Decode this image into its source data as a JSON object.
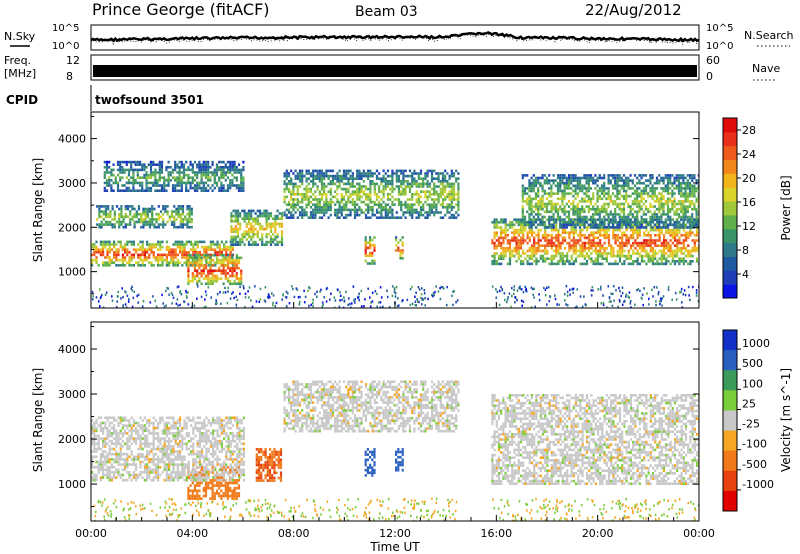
{
  "header": {
    "station": "Prince George (fitACF)",
    "beam": "Beam 03",
    "date": "22/Aug/2012"
  },
  "labels": {
    "nsky": "N.Sky",
    "nsearch": "N.Search",
    "freq": "Freq.",
    "freq_unit": "[MHz]",
    "nave": "Nave",
    "cpid": "CPID",
    "cpid_value": "twofsound 3501",
    "nsky_ticks": [
      "10^5",
      "10^0"
    ],
    "nsearch_ticks": [
      "10^5",
      "10^0"
    ],
    "freq_ticks": [
      "12",
      "8"
    ],
    "nave_ticks": [
      "60",
      "0"
    ]
  },
  "colors": {
    "power_scale": [
      "#0a14e6",
      "#1f5aa0",
      "#2f8a7a",
      "#5fb04a",
      "#b9d233",
      "#f2a41b",
      "#ef5a1d",
      "#e00b0b"
    ],
    "velocity_scale": [
      "#1230c8",
      "#2a60c0",
      "#3b9c5a",
      "#7ccd3c",
      "#c8c8c8",
      "#f5a623",
      "#f07a1a",
      "#e8420f",
      "#e00000"
    ],
    "ground_scatter": "#c8c8c8"
  },
  "chart_data": [
    {
      "type": "heatmap",
      "panel": "power",
      "xlabel": "",
      "ylabel": "Slant Range [km]",
      "xlim": [
        "00:00",
        "24:00"
      ],
      "ylim": [
        180,
        4600
      ],
      "y_ticks": [
        1000,
        2000,
        3000,
        4000
      ],
      "colorbar": {
        "label": "Power [dB]",
        "ticks": [
          4,
          8,
          12,
          16,
          20,
          24,
          28
        ],
        "range": [
          0,
          30
        ]
      },
      "echo_bands": [
        {
          "start_h": 0.0,
          "end_h": 5.6,
          "range_low_km": 1150,
          "range_high_km": 1700,
          "peak_db": 27
        },
        {
          "start_h": 3.8,
          "end_h": 5.9,
          "range_low_km": 700,
          "range_high_km": 1400,
          "peak_db": 28
        },
        {
          "start_h": 0.2,
          "end_h": 4.0,
          "range_low_km": 2000,
          "range_high_km": 2500,
          "peak_db": 16
        },
        {
          "start_h": 0.5,
          "end_h": 6.0,
          "range_low_km": 2800,
          "range_high_km": 3500,
          "peak_db": 12
        },
        {
          "start_h": 5.5,
          "end_h": 7.5,
          "range_low_km": 1600,
          "range_high_km": 2400,
          "peak_db": 20
        },
        {
          "start_h": 7.6,
          "end_h": 14.5,
          "range_low_km": 2200,
          "range_high_km": 3300,
          "peak_db": 16
        },
        {
          "start_h": 10.8,
          "end_h": 11.2,
          "range_low_km": 1200,
          "range_high_km": 1800,
          "peak_db": 28
        },
        {
          "start_h": 12.0,
          "end_h": 12.3,
          "range_low_km": 1300,
          "range_high_km": 1800,
          "peak_db": 26
        },
        {
          "start_h": 15.8,
          "end_h": 24.0,
          "range_low_km": 1200,
          "range_high_km": 2200,
          "peak_db": 26
        },
        {
          "start_h": 17.0,
          "end_h": 24.0,
          "range_low_km": 2000,
          "range_high_km": 3200,
          "peak_db": 16
        }
      ]
    },
    {
      "type": "heatmap",
      "panel": "velocity",
      "xlabel": "Time UT",
      "ylabel": "Slant Range [km]",
      "xlim": [
        "00:00",
        "24:00"
      ],
      "x_ticks": [
        "00:00",
        "04:00",
        "08:00",
        "12:00",
        "16:00",
        "20:00",
        "00:00"
      ],
      "ylim": [
        180,
        4600
      ],
      "y_ticks": [
        1000,
        2000,
        3000,
        4000
      ],
      "colorbar": {
        "label": "Velocity [m s^-1]",
        "ticks": [
          1000,
          500,
          100,
          25,
          -25,
          -100,
          -500,
          -1000
        ]
      },
      "echo_bands": [
        {
          "start_h": 3.8,
          "end_h": 5.8,
          "range_low_km": 700,
          "range_high_km": 1400,
          "velocity_ms": -400
        },
        {
          "start_h": 6.5,
          "end_h": 7.5,
          "range_low_km": 1100,
          "range_high_km": 1800,
          "velocity_ms": -500
        },
        {
          "start_h": 0.0,
          "end_h": 6.0,
          "range_low_km": 1100,
          "range_high_km": 2500,
          "velocity_ms": 0
        },
        {
          "start_h": 7.6,
          "end_h": 14.5,
          "range_low_km": 2200,
          "range_high_km": 3300,
          "velocity_ms": 0
        },
        {
          "start_h": 15.8,
          "end_h": 24.0,
          "range_low_km": 1000,
          "range_high_km": 3000,
          "velocity_ms": 0
        },
        {
          "start_h": 10.8,
          "end_h": 11.2,
          "range_low_km": 1200,
          "range_high_km": 1800,
          "velocity_ms": 600
        },
        {
          "start_h": 12.0,
          "end_h": 12.3,
          "range_low_km": 1300,
          "range_high_km": 1800,
          "velocity_ms": 700
        }
      ]
    }
  ]
}
